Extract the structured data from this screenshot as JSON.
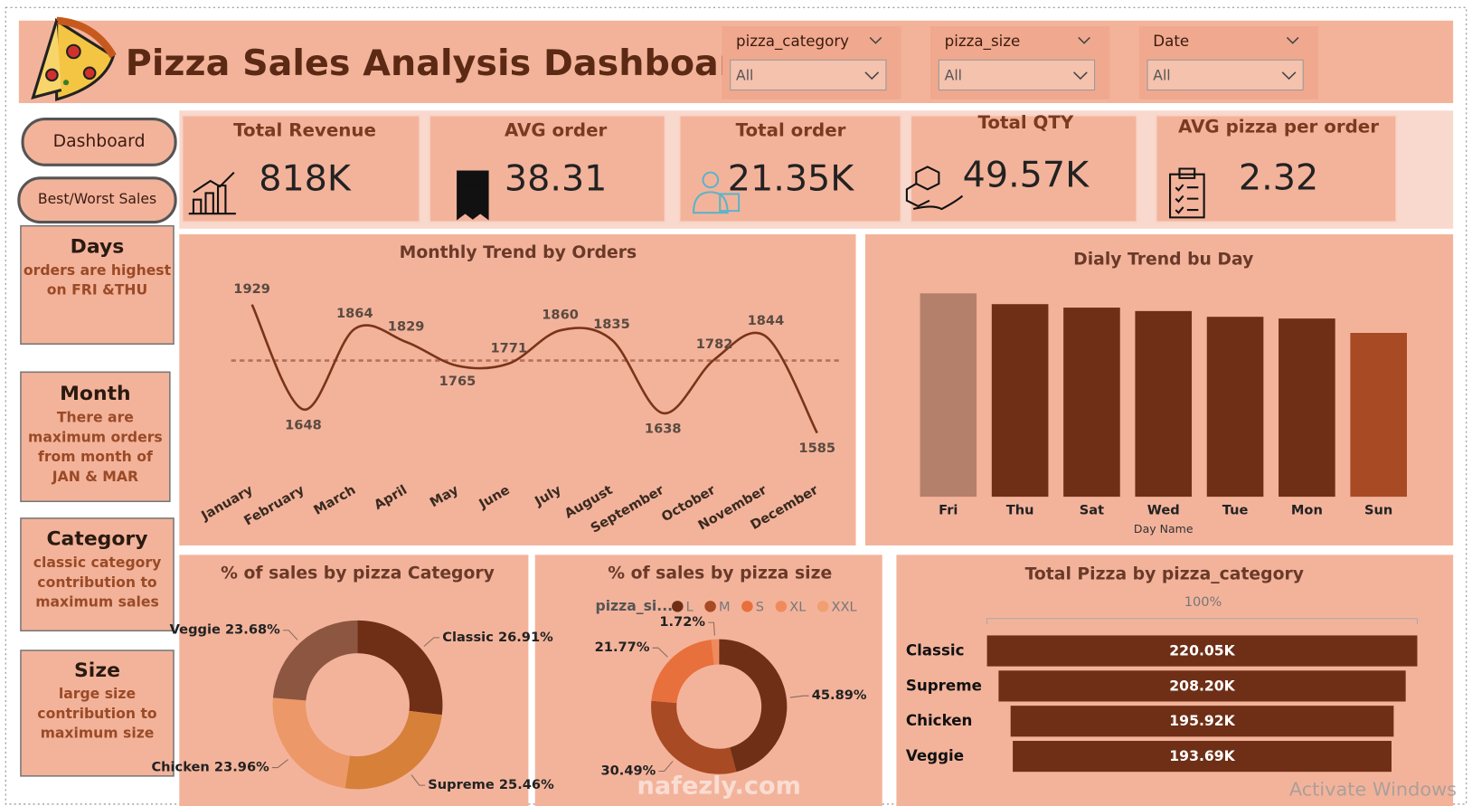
{
  "header": {
    "title": "Pizza Sales Analysis Dashboard"
  },
  "filters": [
    {
      "label": "pizza_category",
      "value": "All"
    },
    {
      "label": "pizza_size",
      "value": "All"
    },
    {
      "label": "Date",
      "value": "All"
    }
  ],
  "nav": [
    "Dashboard",
    "Best/Worst Sales"
  ],
  "kpis": [
    {
      "title": "Total Revenue",
      "value": "818K"
    },
    {
      "title": "AVG order",
      "value": "38.31"
    },
    {
      "title": "Total order",
      "value": "21.35K"
    },
    {
      "title": "Total QTY",
      "value": "49.57K"
    },
    {
      "title": "AVG pizza per order",
      "value": "2.32"
    }
  ],
  "notes": [
    {
      "title": "Days",
      "lines": [
        "orders are highest",
        "on FRI &THU"
      ]
    },
    {
      "title": "Month",
      "lines": [
        "There are",
        "maximum orders",
        "from month of",
        "JAN & MAR"
      ]
    },
    {
      "title": "Category",
      "lines": [
        "classic category",
        "contribution to",
        "maximum sales"
      ]
    },
    {
      "title": "Size",
      "lines": [
        "large size",
        "contribution to",
        "maximum size"
      ]
    }
  ],
  "overlay": {
    "watermark": "nafezly.com",
    "os_notice": "Activate Windows"
  },
  "chart_data": [
    {
      "type": "line",
      "title": "Monthly Trend by Orders",
      "categories": [
        "January",
        "February",
        "March",
        "April",
        "May",
        "June",
        "July",
        "August",
        "September",
        "October",
        "November",
        "December"
      ],
      "values": [
        1929,
        1648,
        1864,
        1829,
        1765,
        1771,
        1860,
        1835,
        1638,
        1782,
        1844,
        1585
      ],
      "color": "#7a3418",
      "average_line": 1779.17
    },
    {
      "type": "bar",
      "title": "Dialy Trend bu Day",
      "x_label": "Day Name",
      "categories": [
        "Fri",
        "Thu",
        "Sat",
        "Wed",
        "Tue",
        "Mon",
        "Sun"
      ],
      "values": [
        3538,
        3350,
        3290,
        3230,
        3130,
        3100,
        2850
      ],
      "colors": [
        "#b5806b",
        "#6e2f16",
        "#6e2f16",
        "#6e2f16",
        "#6e2f16",
        "#6e2f16",
        "#a84a24"
      ]
    },
    {
      "type": "donut",
      "title": "% of sales by pizza Category",
      "categories": [
        "Classic",
        "Supreme",
        "Chicken",
        "Veggie"
      ],
      "values": [
        26.91,
        25.46,
        23.96,
        23.68
      ],
      "value_labels": [
        "26.91%",
        "25.46%",
        "23.96%",
        "23.68%"
      ],
      "colors": [
        "#6e2f16",
        "#d6803a",
        "#ec9868",
        "#8d5640"
      ]
    },
    {
      "type": "donut",
      "title": "% of sales by pizza size",
      "legend_title": "pizza_si...",
      "categories": [
        "L",
        "M",
        "S",
        "XL",
        "XXL"
      ],
      "values": [
        45.89,
        30.49,
        21.77,
        1.72,
        0.12
      ],
      "value_labels": [
        "45.89%",
        "30.49%",
        "21.77%",
        "1.72%",
        null
      ],
      "colors": [
        "#6e2f16",
        "#a84a24",
        "#e8703c",
        "#f08a5d",
        "#f0a070"
      ]
    },
    {
      "type": "funnel",
      "title": "Total Pizza by pizza_category",
      "top_label": "100%",
      "categories": [
        "Classic",
        "Supreme",
        "Chicken",
        "Veggie"
      ],
      "values": [
        220050,
        208200,
        195920,
        193690
      ],
      "value_labels": [
        "220.05K",
        "208.20K",
        "195.92K",
        "193.69K"
      ],
      "color": "#6e2f16"
    }
  ]
}
